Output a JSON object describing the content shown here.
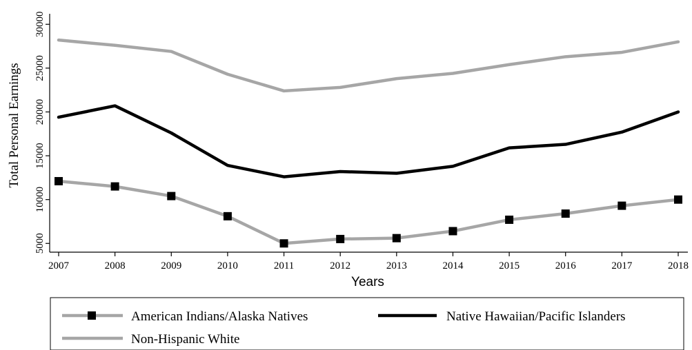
{
  "chart_data": {
    "type": "line",
    "xlabel": "Years",
    "ylabel": "Total Personal Earnings",
    "x": [
      2007,
      2008,
      2009,
      2010,
      2011,
      2012,
      2013,
      2014,
      2015,
      2016,
      2017,
      2018
    ],
    "yticks": [
      5000,
      10000,
      15000,
      20000,
      25000,
      30000
    ],
    "ylim": [
      4000,
      31200
    ],
    "xlim": [
      2007,
      2018
    ],
    "grid": false,
    "legend_position": "bottom",
    "series": [
      {
        "name": "American Indians/Alaska Natives",
        "color": "#a6a6a6",
        "marker": "square",
        "values": [
          12100,
          11500,
          10400,
          8100,
          5000,
          5500,
          5600,
          6400,
          7700,
          8400,
          9300,
          10000
        ]
      },
      {
        "name": "Native Hawaiian/Pacific Islanders",
        "color": "#000000",
        "marker": "none",
        "values": [
          19400,
          20700,
          17600,
          13900,
          12600,
          13200,
          13000,
          13800,
          15900,
          16300,
          17700,
          20000
        ]
      },
      {
        "name": "Non-Hispanic White",
        "color": "#a6a6a6",
        "marker": "none",
        "values": [
          28200,
          27600,
          26900,
          24300,
          22400,
          22800,
          23800,
          24400,
          25400,
          26300,
          26800,
          28000
        ]
      }
    ]
  }
}
